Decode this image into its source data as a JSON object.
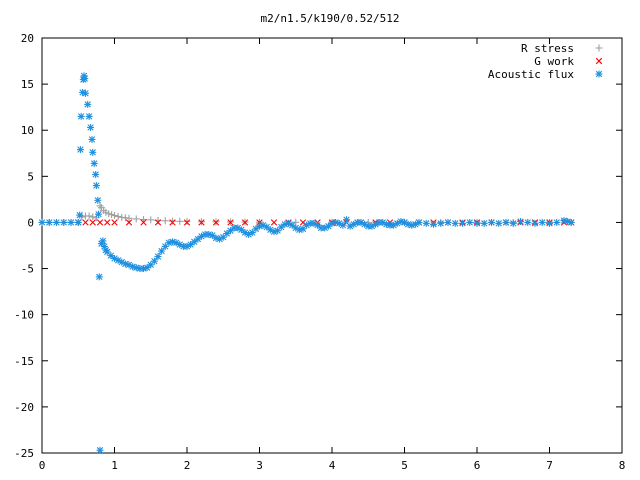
{
  "chart_data": {
    "type": "scatter",
    "title": "m2/n1.5/k190/0.52/512",
    "xlim": [
      0,
      8
    ],
    "ylim": [
      -25,
      20
    ],
    "x_ticks": [
      "0",
      "1",
      "2",
      "3",
      "4",
      "5",
      "6",
      "7",
      "8"
    ],
    "y_ticks": [
      "20",
      "15",
      "10",
      "5",
      "0",
      "-5",
      "-10",
      "-15",
      "-20",
      "-25"
    ],
    "grid": false,
    "legend_position": "top-right",
    "series": [
      {
        "name": "R stress",
        "marker": "+",
        "color": "#a0a0a0",
        "points": [
          [
            0.0,
            0.0
          ],
          [
            0.1,
            0.0
          ],
          [
            0.2,
            0.0
          ],
          [
            0.3,
            0.0
          ],
          [
            0.4,
            0.0
          ],
          [
            0.5,
            0.0
          ],
          [
            0.55,
            0.6
          ],
          [
            0.6,
            0.7
          ],
          [
            0.65,
            0.7
          ],
          [
            0.7,
            0.6
          ],
          [
            0.75,
            0.5
          ],
          [
            0.8,
            1.8
          ],
          [
            0.82,
            1.6
          ],
          [
            0.85,
            1.3
          ],
          [
            0.88,
            1.1
          ],
          [
            0.92,
            0.95
          ],
          [
            0.96,
            0.85
          ],
          [
            1.0,
            0.75
          ],
          [
            1.05,
            0.65
          ],
          [
            1.1,
            0.55
          ],
          [
            1.15,
            0.5
          ],
          [
            1.2,
            0.45
          ],
          [
            1.3,
            0.38
          ],
          [
            1.4,
            0.32
          ],
          [
            1.5,
            0.28
          ],
          [
            1.6,
            0.22
          ],
          [
            1.7,
            0.18
          ],
          [
            1.8,
            0.15
          ],
          [
            1.9,
            0.12
          ],
          [
            2.0,
            0.1
          ],
          [
            2.2,
            0.08
          ],
          [
            2.4,
            0.06
          ],
          [
            2.6,
            0.05
          ],
          [
            2.8,
            0.04
          ],
          [
            3.0,
            0.03
          ],
          [
            3.5,
            0.02
          ],
          [
            4.0,
            0.02
          ],
          [
            4.5,
            0.01
          ],
          [
            5.0,
            0.01
          ],
          [
            5.5,
            0.0
          ],
          [
            6.0,
            0.0
          ],
          [
            6.5,
            0.0
          ],
          [
            7.0,
            0.0
          ],
          [
            7.3,
            0.0
          ]
        ]
      },
      {
        "name": "G work",
        "marker": "x",
        "color": "#ff0000",
        "points": [
          [
            0.5,
            0.0
          ],
          [
            0.6,
            0.0
          ],
          [
            0.7,
            0.0
          ],
          [
            0.8,
            0.0
          ],
          [
            0.9,
            0.0
          ],
          [
            1.0,
            0.0
          ],
          [
            1.2,
            0.0
          ],
          [
            1.4,
            0.0
          ],
          [
            1.6,
            0.0
          ],
          [
            1.8,
            0.0
          ],
          [
            2.0,
            0.0
          ],
          [
            2.2,
            0.0
          ],
          [
            2.4,
            0.0
          ],
          [
            2.6,
            0.0
          ],
          [
            2.8,
            0.0
          ],
          [
            3.0,
            0.0
          ],
          [
            3.2,
            0.0
          ],
          [
            3.4,
            0.0
          ],
          [
            3.6,
            0.0
          ],
          [
            3.8,
            0.0
          ],
          [
            4.0,
            0.0
          ],
          [
            4.2,
            0.0
          ],
          [
            4.4,
            0.0
          ],
          [
            4.6,
            0.0
          ],
          [
            4.8,
            0.0
          ],
          [
            5.0,
            0.0
          ],
          [
            5.2,
            0.0
          ],
          [
            5.4,
            0.0
          ],
          [
            5.6,
            0.0
          ],
          [
            5.8,
            0.0
          ],
          [
            6.0,
            0.0
          ],
          [
            6.2,
            0.0
          ],
          [
            6.4,
            0.0
          ],
          [
            6.6,
            0.0
          ],
          [
            6.8,
            0.0
          ],
          [
            7.0,
            0.0
          ],
          [
            7.2,
            0.0
          ],
          [
            7.3,
            0.0
          ]
        ]
      },
      {
        "name": "Acoustic flux",
        "marker": "*",
        "color": "#1e90e0",
        "points": [
          [
            0.0,
            0.0
          ],
          [
            0.1,
            0.0
          ],
          [
            0.2,
            0.0
          ],
          [
            0.3,
            0.0
          ],
          [
            0.4,
            0.0
          ],
          [
            0.5,
            0.0
          ],
          [
            0.52,
            0.8
          ],
          [
            0.53,
            7.9
          ],
          [
            0.54,
            11.5
          ],
          [
            0.56,
            14.1
          ],
          [
            0.57,
            15.5
          ],
          [
            0.58,
            15.9
          ],
          [
            0.59,
            15.6
          ],
          [
            0.6,
            14.0
          ],
          [
            0.63,
            12.8
          ],
          [
            0.65,
            11.5
          ],
          [
            0.67,
            10.3
          ],
          [
            0.69,
            9.0
          ],
          [
            0.7,
            7.6
          ],
          [
            0.72,
            6.4
          ],
          [
            0.74,
            5.2
          ],
          [
            0.75,
            4.0
          ],
          [
            0.77,
            2.4
          ],
          [
            0.78,
            0.9
          ],
          [
            0.8,
            -24.7
          ],
          [
            0.79,
            -5.9
          ],
          [
            0.82,
            -2.3
          ],
          [
            0.84,
            -2.0
          ],
          [
            0.86,
            -2.6
          ],
          [
            0.88,
            -3.0
          ],
          [
            0.9,
            -3.2
          ],
          [
            0.95,
            -3.6
          ],
          [
            1.0,
            -3.9
          ],
          [
            1.05,
            -4.1
          ],
          [
            1.1,
            -4.3
          ],
          [
            1.15,
            -4.5
          ],
          [
            1.2,
            -4.6
          ],
          [
            1.25,
            -4.8
          ],
          [
            1.3,
            -4.9
          ],
          [
            1.35,
            -5.0
          ],
          [
            1.4,
            -5.0
          ],
          [
            1.45,
            -4.9
          ],
          [
            1.5,
            -4.6
          ],
          [
            1.55,
            -4.2
          ],
          [
            1.6,
            -3.7
          ],
          [
            1.65,
            -3.1
          ],
          [
            1.7,
            -2.6
          ],
          [
            1.75,
            -2.2
          ],
          [
            1.8,
            -2.1
          ],
          [
            1.85,
            -2.2
          ],
          [
            1.9,
            -2.4
          ],
          [
            1.95,
            -2.6
          ],
          [
            2.0,
            -2.6
          ],
          [
            2.05,
            -2.4
          ],
          [
            2.1,
            -2.1
          ],
          [
            2.15,
            -1.8
          ],
          [
            2.2,
            -1.5
          ],
          [
            2.25,
            -1.3
          ],
          [
            2.3,
            -1.3
          ],
          [
            2.35,
            -1.4
          ],
          [
            2.4,
            -1.7
          ],
          [
            2.45,
            -1.8
          ],
          [
            2.5,
            -1.6
          ],
          [
            2.55,
            -1.2
          ],
          [
            2.6,
            -0.9
          ],
          [
            2.65,
            -0.6
          ],
          [
            2.7,
            -0.6
          ],
          [
            2.75,
            -0.8
          ],
          [
            2.8,
            -1.1
          ],
          [
            2.85,
            -1.3
          ],
          [
            2.9,
            -1.1
          ],
          [
            2.95,
            -0.7
          ],
          [
            3.0,
            -0.4
          ],
          [
            3.05,
            -0.3
          ],
          [
            3.1,
            -0.5
          ],
          [
            3.15,
            -0.8
          ],
          [
            3.2,
            -1.0
          ],
          [
            3.25,
            -0.9
          ],
          [
            3.3,
            -0.5
          ],
          [
            3.35,
            -0.2
          ],
          [
            3.4,
            -0.1
          ],
          [
            3.45,
            -0.3
          ],
          [
            3.5,
            -0.6
          ],
          [
            3.55,
            -0.8
          ],
          [
            3.6,
            -0.7
          ],
          [
            3.65,
            -0.3
          ],
          [
            3.7,
            -0.1
          ],
          [
            3.75,
            -0.1
          ],
          [
            3.8,
            -0.3
          ],
          [
            3.85,
            -0.6
          ],
          [
            3.9,
            -0.6
          ],
          [
            3.95,
            -0.4
          ],
          [
            4.0,
            -0.1
          ],
          [
            4.05,
            0.0
          ],
          [
            4.1,
            -0.1
          ],
          [
            4.15,
            -0.3
          ],
          [
            4.2,
            0.3
          ],
          [
            4.25,
            -0.4
          ],
          [
            4.3,
            -0.2
          ],
          [
            4.35,
            0.0
          ],
          [
            4.4,
            0.0
          ],
          [
            4.45,
            -0.2
          ],
          [
            4.5,
            -0.4
          ],
          [
            4.55,
            -0.4
          ],
          [
            4.6,
            -0.2
          ],
          [
            4.65,
            0.0
          ],
          [
            4.7,
            0.0
          ],
          [
            4.75,
            -0.2
          ],
          [
            4.8,
            -0.3
          ],
          [
            4.85,
            -0.3
          ],
          [
            4.9,
            -0.1
          ],
          [
            4.95,
            0.1
          ],
          [
            5.0,
            0.0
          ],
          [
            5.05,
            -0.2
          ],
          [
            5.1,
            -0.3
          ],
          [
            5.15,
            -0.2
          ],
          [
            5.2,
            0.0
          ],
          [
            5.3,
            -0.1
          ],
          [
            5.4,
            -0.2
          ],
          [
            5.5,
            -0.1
          ],
          [
            5.6,
            0.0
          ],
          [
            5.7,
            -0.1
          ],
          [
            5.8,
            -0.1
          ],
          [
            5.9,
            0.0
          ],
          [
            6.0,
            -0.1
          ],
          [
            6.1,
            -0.1
          ],
          [
            6.2,
            0.0
          ],
          [
            6.3,
            -0.1
          ],
          [
            6.4,
            0.0
          ],
          [
            6.5,
            -0.1
          ],
          [
            6.6,
            0.1
          ],
          [
            6.7,
            0.0
          ],
          [
            6.8,
            -0.1
          ],
          [
            6.9,
            0.0
          ],
          [
            7.0,
            -0.1
          ],
          [
            7.1,
            0.0
          ],
          [
            7.2,
            0.2
          ],
          [
            7.25,
            0.1
          ],
          [
            7.3,
            0.0
          ]
        ]
      }
    ]
  }
}
